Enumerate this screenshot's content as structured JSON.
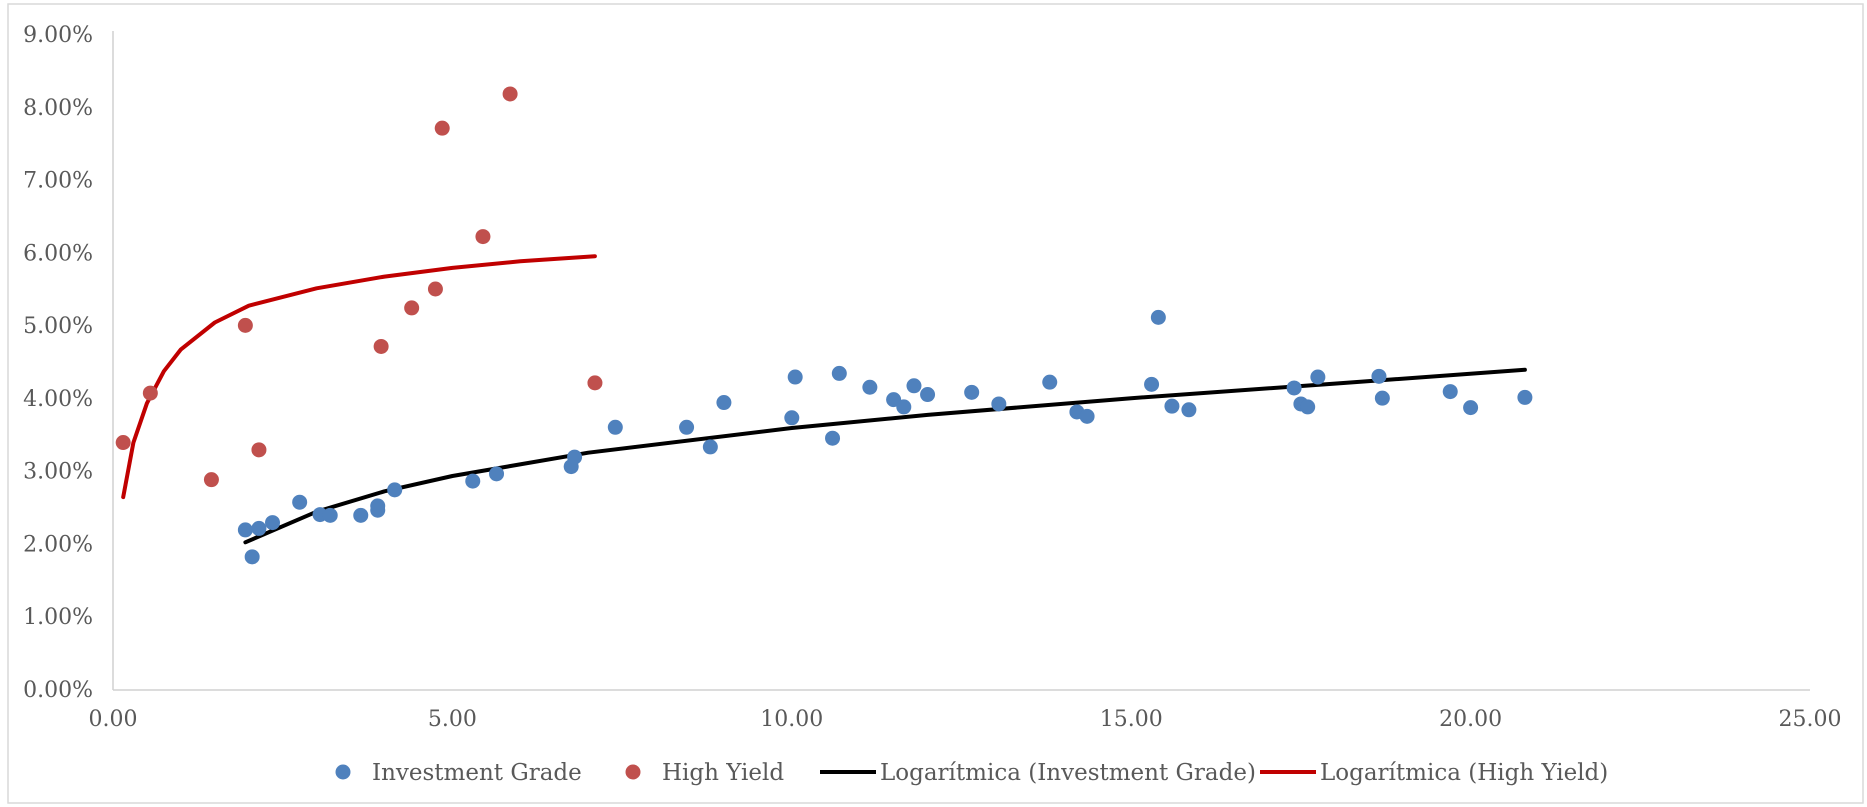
{
  "chart_data": {
    "type": "scatter",
    "title": "",
    "xlabel": "",
    "ylabel": "",
    "xlim": [
      0,
      25
    ],
    "ylim": [
      0,
      9
    ],
    "x_ticks": [
      0,
      5,
      10,
      15,
      20,
      25
    ],
    "x_tick_labels": [
      "0.00",
      "5.00",
      "10.00",
      "15.00",
      "20.00",
      "25.00"
    ],
    "y_ticks": [
      0,
      1,
      2,
      3,
      4,
      5,
      6,
      7,
      8,
      9
    ],
    "y_tick_labels": [
      "0.00%",
      "1.00%",
      "2.00%",
      "3.00%",
      "4.00%",
      "5.00%",
      "6.00%",
      "7.00%",
      "8.00%",
      "9.00%"
    ],
    "grid": false,
    "legend_position": "bottom",
    "series": [
      {
        "name": "Investment Grade",
        "kind": "scatter",
        "color": "#4f81bd",
        "points": [
          [
            1.95,
            2.2
          ],
          [
            2.05,
            1.83
          ],
          [
            2.15,
            2.22
          ],
          [
            2.35,
            2.3
          ],
          [
            2.75,
            2.58
          ],
          [
            3.05,
            2.41
          ],
          [
            3.2,
            2.4
          ],
          [
            3.65,
            2.4
          ],
          [
            3.9,
            2.53
          ],
          [
            3.9,
            2.47
          ],
          [
            4.15,
            2.75
          ],
          [
            5.3,
            2.87
          ],
          [
            5.65,
            2.97
          ],
          [
            6.75,
            3.07
          ],
          [
            6.8,
            3.2
          ],
          [
            7.4,
            3.61
          ],
          [
            8.45,
            3.61
          ],
          [
            8.8,
            3.34
          ],
          [
            9.0,
            3.95
          ],
          [
            10.0,
            3.74
          ],
          [
            10.05,
            4.3
          ],
          [
            10.6,
            3.46
          ],
          [
            10.7,
            4.35
          ],
          [
            11.15,
            4.16
          ],
          [
            11.5,
            3.99
          ],
          [
            11.65,
            3.89
          ],
          [
            11.8,
            4.18
          ],
          [
            12.0,
            4.06
          ],
          [
            12.65,
            4.09
          ],
          [
            13.05,
            3.93
          ],
          [
            13.8,
            4.23
          ],
          [
            14.2,
            3.82
          ],
          [
            14.35,
            3.76
          ],
          [
            15.3,
            4.2
          ],
          [
            15.4,
            5.12
          ],
          [
            15.6,
            3.9
          ],
          [
            15.85,
            3.85
          ],
          [
            17.4,
            4.15
          ],
          [
            17.5,
            3.93
          ],
          [
            17.6,
            3.89
          ],
          [
            17.75,
            4.3
          ],
          [
            18.65,
            4.31
          ],
          [
            18.7,
            4.01
          ],
          [
            19.7,
            4.1
          ],
          [
            20.0,
            3.88
          ],
          [
            20.8,
            4.02
          ]
        ]
      },
      {
        "name": "High Yield",
        "kind": "scatter",
        "color": "#c0504d",
        "points": [
          [
            0.15,
            3.4
          ],
          [
            0.55,
            4.08
          ],
          [
            1.45,
            2.89
          ],
          [
            1.95,
            5.01
          ],
          [
            2.15,
            3.3
          ],
          [
            3.95,
            4.72
          ],
          [
            4.4,
            5.25
          ],
          [
            4.75,
            5.51
          ],
          [
            4.85,
            7.72
          ],
          [
            5.45,
            6.23
          ],
          [
            5.85,
            8.19
          ],
          [
            7.1,
            4.22
          ]
        ]
      },
      {
        "name": "Logarítmica (Investment Grade)",
        "kind": "line",
        "color": "#000000",
        "points": [
          [
            1.95,
            2.03
          ],
          [
            3.0,
            2.45
          ],
          [
            4.0,
            2.73
          ],
          [
            5.0,
            2.94
          ],
          [
            7.0,
            3.26
          ],
          [
            10.0,
            3.6
          ],
          [
            12.0,
            3.78
          ],
          [
            15.0,
            4.01
          ],
          [
            18.0,
            4.21
          ],
          [
            20.8,
            4.4
          ]
        ]
      },
      {
        "name": "Logarítmica (High Yield)",
        "kind": "line",
        "color": "#c00000",
        "points": [
          [
            0.15,
            2.65
          ],
          [
            0.3,
            3.4
          ],
          [
            0.5,
            3.94
          ],
          [
            0.75,
            4.38
          ],
          [
            1.0,
            4.68
          ],
          [
            1.5,
            5.05
          ],
          [
            2.0,
            5.28
          ],
          [
            3.0,
            5.52
          ],
          [
            4.0,
            5.68
          ],
          [
            5.0,
            5.8
          ],
          [
            6.0,
            5.89
          ],
          [
            7.1,
            5.96
          ]
        ]
      }
    ]
  }
}
